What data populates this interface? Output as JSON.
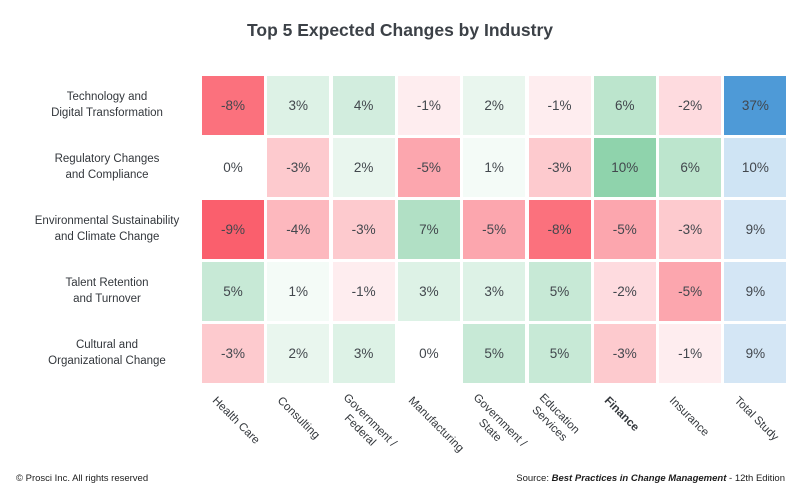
{
  "title": "Top 5 Expected Changes by Industry",
  "footer": {
    "copyright": "© Prosci Inc. All rights reserved",
    "source_prefix": "Source: ",
    "source_title": "Best Practices in Change Management",
    "source_suffix": " - 12th Edition"
  },
  "chart_data": {
    "type": "heatmap",
    "title": "Top 5 Expected Changes by Industry",
    "rows": [
      {
        "lines": [
          "Technology and",
          "Digital Transformation"
        ]
      },
      {
        "lines": [
          "Regulatory Changes",
          "and Compliance"
        ]
      },
      {
        "lines": [
          "Environmental Sustainability",
          "and Climate Change"
        ]
      },
      {
        "lines": [
          "Talent Retention",
          "and Turnover"
        ]
      },
      {
        "lines": [
          "Cultural and",
          "Organizational Change"
        ]
      }
    ],
    "columns": [
      {
        "lines": [
          "Health Care"
        ],
        "bold": false
      },
      {
        "lines": [
          "Consulting"
        ],
        "bold": false
      },
      {
        "lines": [
          "Government /",
          "Federal"
        ],
        "bold": false
      },
      {
        "lines": [
          "Manufacturing"
        ],
        "bold": false
      },
      {
        "lines": [
          "Government /",
          "State"
        ],
        "bold": false
      },
      {
        "lines": [
          "Education",
          "Services"
        ],
        "bold": false
      },
      {
        "lines": [
          "Finance"
        ],
        "bold": true
      },
      {
        "lines": [
          "Insurance"
        ],
        "bold": false
      },
      {
        "lines": [
          "Total Study"
        ],
        "bold": false
      }
    ],
    "values": [
      [
        -8,
        3,
        4,
        -1,
        2,
        -1,
        6,
        -2,
        37
      ],
      [
        0,
        -3,
        2,
        -5,
        1,
        -3,
        10,
        6,
        10
      ],
      [
        -9,
        -4,
        -3,
        7,
        -5,
        -8,
        -5,
        -3,
        9
      ],
      [
        5,
        1,
        -1,
        3,
        3,
        5,
        -2,
        -5,
        9
      ],
      [
        -3,
        2,
        3,
        0,
        5,
        5,
        -3,
        -1,
        9
      ]
    ],
    "cell_suffix": "%",
    "colors": {
      "negative": "#fa5f6d",
      "positive": "#8fd3ac",
      "total_column": "#4e9ad7",
      "neutral": "#ffffff"
    },
    "scale": {
      "negative_min": -9,
      "positive_max": 10,
      "total_max": 37
    },
    "total_column_index": 8,
    "legend": "none",
    "grid": "off"
  }
}
